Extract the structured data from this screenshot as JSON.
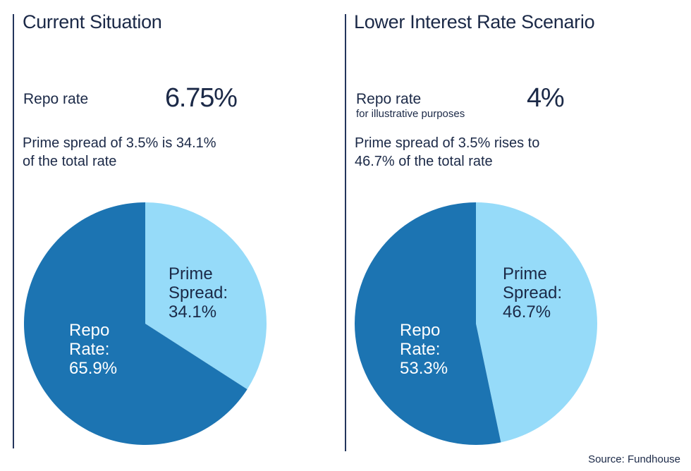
{
  "page": {
    "background": "#ffffff"
  },
  "colors": {
    "dark_blue": "#1c74b2",
    "light_blue": "#96dbf9",
    "navy_text": "#1b2947",
    "divider_line": "#24355c",
    "white_text": "#ffffff"
  },
  "source_note": "Source: Fundhouse",
  "panels": [
    {
      "title": "Current Situation",
      "repo_label": "Repo rate",
      "repo_value": "6.75%",
      "desc_line1": "Prime spread of 3.5% is 34.1%",
      "desc_line2": "of the total rate"
    },
    {
      "title": "Lower Interest Rate Scenario",
      "repo_label": "Repo rate",
      "repo_note": "for illustrative purposes",
      "repo_value": "4%",
      "desc_line1": "Prime spread of 3.5% rises to",
      "desc_line2": "46.7% of the total rate"
    }
  ],
  "chart_data": [
    {
      "type": "pie",
      "title": "Current Situation",
      "start_angle_deg": 0,
      "direction": "clockwise",
      "slices": [
        {
          "label": "Prime Spread",
          "value": 34.1,
          "color": "#96dbf9",
          "text_color": "#1b2947",
          "label_lines": [
            "Prime",
            "Spread:",
            "34.1%"
          ]
        },
        {
          "label": "Repo Rate",
          "value": 65.9,
          "color": "#1c74b2",
          "text_color": "#ffffff",
          "label_lines": [
            "Repo",
            "Rate:",
            "65.9%"
          ]
        }
      ]
    },
    {
      "type": "pie",
      "title": "Lower Interest Rate Scenario",
      "start_angle_deg": 0,
      "direction": "clockwise",
      "slices": [
        {
          "label": "Prime Spread",
          "value": 46.7,
          "color": "#96dbf9",
          "text_color": "#1b2947",
          "label_lines": [
            "Prime",
            "Spread:",
            "46.7%"
          ]
        },
        {
          "label": "Repo Rate",
          "value": 53.3,
          "color": "#1c74b2",
          "text_color": "#ffffff",
          "label_lines": [
            "Repo",
            "Rate:",
            "53.3%"
          ]
        }
      ]
    }
  ]
}
